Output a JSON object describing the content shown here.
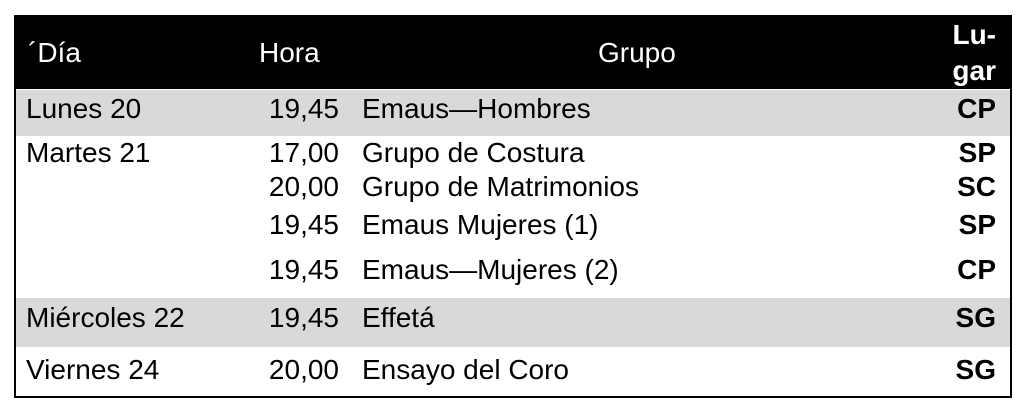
{
  "header": {
    "day": "´Día",
    "time": "Hora",
    "group": "Grupo",
    "place_line1": "Lu-",
    "place_line2": "gar"
  },
  "rows": [
    {
      "day": "Lunes 20",
      "time": "19,45",
      "group": "Emaus—Hombres",
      "place": "CP"
    },
    {
      "day": "Martes 21",
      "time": "17,00",
      "group": "Grupo de Costura",
      "place": "SP"
    },
    {
      "day": "",
      "time": "20,00",
      "group": "Grupo de Matrimonios",
      "place": "SC"
    },
    {
      "day": "",
      "time": "19,45",
      "group": "Emaus  Mujeres (1)",
      "place": "SP"
    },
    {
      "day": "",
      "time": "19,45",
      "group": "Emaus—Mujeres (2)",
      "place": "CP"
    },
    {
      "day": "Miércoles 22",
      "time": "19,45",
      "group": "Effetá",
      "place": "SG"
    },
    {
      "day": "Viernes 24",
      "time": "20,00",
      "group": "Ensayo del Coro",
      "place": "SG"
    }
  ],
  "colors": {
    "header_bg": "#000000",
    "band_bg": "#d9d9d9"
  }
}
